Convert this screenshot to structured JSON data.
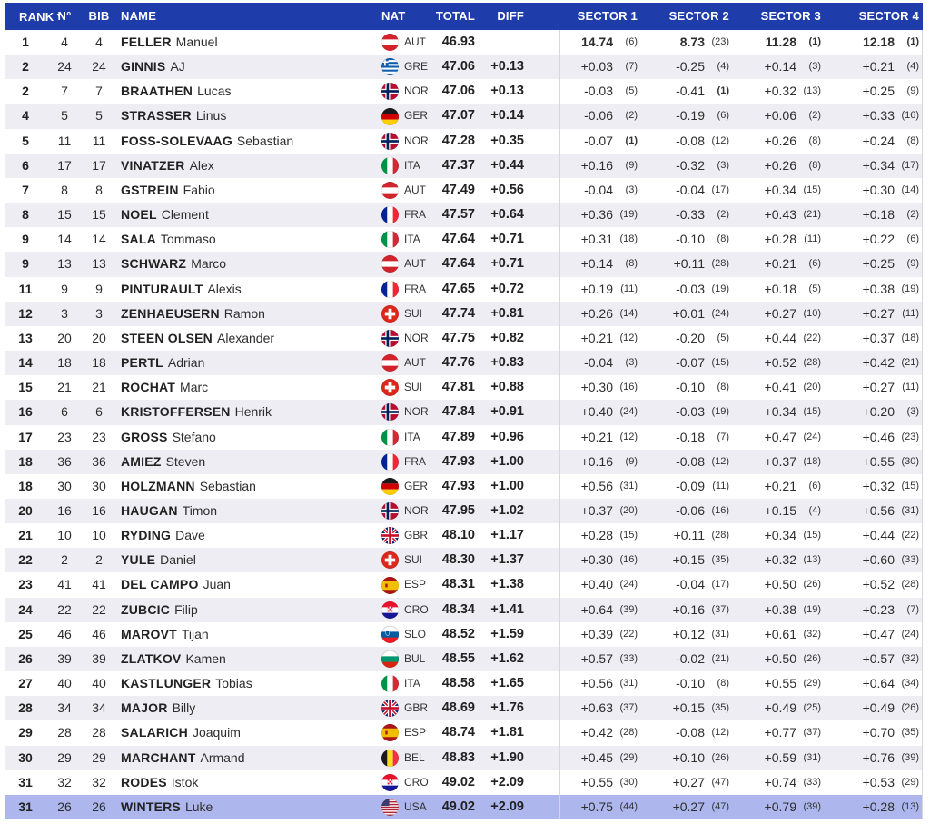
{
  "colors": {
    "header_bg": "#1e3dab",
    "header_text": "#ffffff",
    "row_alt": "#ededf3",
    "highlight_row": "#adb7ee",
    "separator": "#d6d7db"
  },
  "table": {
    "sort_indicator": "▼",
    "columns": [
      "RANK",
      "N°",
      "BIB",
      "NAME",
      "NAT",
      "TOTAL",
      "DIFF",
      "SECTOR 1",
      "SECTOR 2",
      "SECTOR 3",
      "SECTOR 4"
    ],
    "rows": [
      {
        "rank": "1",
        "n": "4",
        "bib": "4",
        "last": "FELLER",
        "first": "Manuel",
        "nat": "AUT",
        "total": "46.93",
        "diff": "",
        "sectors": [
          [
            "14.74",
            "(6)"
          ],
          [
            "8.73",
            "(23)"
          ],
          [
            "11.28",
            "(1)"
          ],
          [
            "12.18",
            "(1)"
          ]
        ]
      },
      {
        "rank": "2",
        "n": "24",
        "bib": "24",
        "last": "GINNIS",
        "first": "AJ",
        "nat": "GRE",
        "total": "47.06",
        "diff": "+0.13",
        "sectors": [
          [
            "+0.03",
            "(7)"
          ],
          [
            "-0.25",
            "(4)"
          ],
          [
            "+0.14",
            "(3)"
          ],
          [
            "+0.21",
            "(4)"
          ]
        ]
      },
      {
        "rank": "2",
        "n": "7",
        "bib": "7",
        "last": "BRAATHEN",
        "first": "Lucas",
        "nat": "NOR",
        "total": "47.06",
        "diff": "+0.13",
        "sectors": [
          [
            "-0.03",
            "(5)"
          ],
          [
            "-0.41",
            "(1)"
          ],
          [
            "+0.32",
            "(13)"
          ],
          [
            "+0.25",
            "(9)"
          ]
        ]
      },
      {
        "rank": "4",
        "n": "5",
        "bib": "5",
        "last": "STRASSER",
        "first": "Linus",
        "nat": "GER",
        "total": "47.07",
        "diff": "+0.14",
        "sectors": [
          [
            "-0.06",
            "(2)"
          ],
          [
            "-0.19",
            "(6)"
          ],
          [
            "+0.06",
            "(2)"
          ],
          [
            "+0.33",
            "(16)"
          ]
        ]
      },
      {
        "rank": "5",
        "n": "11",
        "bib": "11",
        "last": "FOSS-SOLEVAAG",
        "first": "Sebastian",
        "nat": "NOR",
        "total": "47.28",
        "diff": "+0.35",
        "sectors": [
          [
            "-0.07",
            "(1)"
          ],
          [
            "-0.08",
            "(12)"
          ],
          [
            "+0.26",
            "(8)"
          ],
          [
            "+0.24",
            "(8)"
          ]
        ]
      },
      {
        "rank": "6",
        "n": "17",
        "bib": "17",
        "last": "VINATZER",
        "first": "Alex",
        "nat": "ITA",
        "total": "47.37",
        "diff": "+0.44",
        "sectors": [
          [
            "+0.16",
            "(9)"
          ],
          [
            "-0.32",
            "(3)"
          ],
          [
            "+0.26",
            "(8)"
          ],
          [
            "+0.34",
            "(17)"
          ]
        ]
      },
      {
        "rank": "7",
        "n": "8",
        "bib": "8",
        "last": "GSTREIN",
        "first": "Fabio",
        "nat": "AUT",
        "total": "47.49",
        "diff": "+0.56",
        "sectors": [
          [
            "-0.04",
            "(3)"
          ],
          [
            "-0.04",
            "(17)"
          ],
          [
            "+0.34",
            "(15)"
          ],
          [
            "+0.30",
            "(14)"
          ]
        ]
      },
      {
        "rank": "8",
        "n": "15",
        "bib": "15",
        "last": "NOEL",
        "first": "Clement",
        "nat": "FRA",
        "total": "47.57",
        "diff": "+0.64",
        "sectors": [
          [
            "+0.36",
            "(19)"
          ],
          [
            "-0.33",
            "(2)"
          ],
          [
            "+0.43",
            "(21)"
          ],
          [
            "+0.18",
            "(2)"
          ]
        ]
      },
      {
        "rank": "9",
        "n": "14",
        "bib": "14",
        "last": "SALA",
        "first": "Tommaso",
        "nat": "ITA",
        "total": "47.64",
        "diff": "+0.71",
        "sectors": [
          [
            "+0.31",
            "(18)"
          ],
          [
            "-0.10",
            "(8)"
          ],
          [
            "+0.28",
            "(11)"
          ],
          [
            "+0.22",
            "(6)"
          ]
        ]
      },
      {
        "rank": "9",
        "n": "13",
        "bib": "13",
        "last": "SCHWARZ",
        "first": "Marco",
        "nat": "AUT",
        "total": "47.64",
        "diff": "+0.71",
        "sectors": [
          [
            "+0.14",
            "(8)"
          ],
          [
            "+0.11",
            "(28)"
          ],
          [
            "+0.21",
            "(6)"
          ],
          [
            "+0.25",
            "(9)"
          ]
        ]
      },
      {
        "rank": "11",
        "n": "9",
        "bib": "9",
        "last": "PINTURAULT",
        "first": "Alexis",
        "nat": "FRA",
        "total": "47.65",
        "diff": "+0.72",
        "sectors": [
          [
            "+0.19",
            "(11)"
          ],
          [
            "-0.03",
            "(19)"
          ],
          [
            "+0.18",
            "(5)"
          ],
          [
            "+0.38",
            "(19)"
          ]
        ]
      },
      {
        "rank": "12",
        "n": "3",
        "bib": "3",
        "last": "ZENHAEUSERN",
        "first": "Ramon",
        "nat": "SUI",
        "total": "47.74",
        "diff": "+0.81",
        "sectors": [
          [
            "+0.26",
            "(14)"
          ],
          [
            "+0.01",
            "(24)"
          ],
          [
            "+0.27",
            "(10)"
          ],
          [
            "+0.27",
            "(11)"
          ]
        ]
      },
      {
        "rank": "13",
        "n": "20",
        "bib": "20",
        "last": "STEEN OLSEN",
        "first": "Alexander",
        "nat": "NOR",
        "total": "47.75",
        "diff": "+0.82",
        "sectors": [
          [
            "+0.21",
            "(12)"
          ],
          [
            "-0.20",
            "(5)"
          ],
          [
            "+0.44",
            "(22)"
          ],
          [
            "+0.37",
            "(18)"
          ]
        ]
      },
      {
        "rank": "14",
        "n": "18",
        "bib": "18",
        "last": "PERTL",
        "first": "Adrian",
        "nat": "AUT",
        "total": "47.76",
        "diff": "+0.83",
        "sectors": [
          [
            "-0.04",
            "(3)"
          ],
          [
            "-0.07",
            "(15)"
          ],
          [
            "+0.52",
            "(28)"
          ],
          [
            "+0.42",
            "(21)"
          ]
        ]
      },
      {
        "rank": "15",
        "n": "21",
        "bib": "21",
        "last": "ROCHAT",
        "first": "Marc",
        "nat": "SUI",
        "total": "47.81",
        "diff": "+0.88",
        "sectors": [
          [
            "+0.30",
            "(16)"
          ],
          [
            "-0.10",
            "(8)"
          ],
          [
            "+0.41",
            "(20)"
          ],
          [
            "+0.27",
            "(11)"
          ]
        ]
      },
      {
        "rank": "16",
        "n": "6",
        "bib": "6",
        "last": "KRISTOFFERSEN",
        "first": "Henrik",
        "nat": "NOR",
        "total": "47.84",
        "diff": "+0.91",
        "sectors": [
          [
            "+0.40",
            "(24)"
          ],
          [
            "-0.03",
            "(19)"
          ],
          [
            "+0.34",
            "(15)"
          ],
          [
            "+0.20",
            "(3)"
          ]
        ]
      },
      {
        "rank": "17",
        "n": "23",
        "bib": "23",
        "last": "GROSS",
        "first": "Stefano",
        "nat": "ITA",
        "total": "47.89",
        "diff": "+0.96",
        "sectors": [
          [
            "+0.21",
            "(12)"
          ],
          [
            "-0.18",
            "(7)"
          ],
          [
            "+0.47",
            "(24)"
          ],
          [
            "+0.46",
            "(23)"
          ]
        ]
      },
      {
        "rank": "18",
        "n": "36",
        "bib": "36",
        "last": "AMIEZ",
        "first": "Steven",
        "nat": "FRA",
        "total": "47.93",
        "diff": "+1.00",
        "sectors": [
          [
            "+0.16",
            "(9)"
          ],
          [
            "-0.08",
            "(12)"
          ],
          [
            "+0.37",
            "(18)"
          ],
          [
            "+0.55",
            "(30)"
          ]
        ]
      },
      {
        "rank": "18",
        "n": "30",
        "bib": "30",
        "last": "HOLZMANN",
        "first": "Sebastian",
        "nat": "GER",
        "total": "47.93",
        "diff": "+1.00",
        "sectors": [
          [
            "+0.56",
            "(31)"
          ],
          [
            "-0.09",
            "(11)"
          ],
          [
            "+0.21",
            "(6)"
          ],
          [
            "+0.32",
            "(15)"
          ]
        ]
      },
      {
        "rank": "20",
        "n": "16",
        "bib": "16",
        "last": "HAUGAN",
        "first": "Timon",
        "nat": "NOR",
        "total": "47.95",
        "diff": "+1.02",
        "sectors": [
          [
            "+0.37",
            "(20)"
          ],
          [
            "-0.06",
            "(16)"
          ],
          [
            "+0.15",
            "(4)"
          ],
          [
            "+0.56",
            "(31)"
          ]
        ]
      },
      {
        "rank": "21",
        "n": "10",
        "bib": "10",
        "last": "RYDING",
        "first": "Dave",
        "nat": "GBR",
        "total": "48.10",
        "diff": "+1.17",
        "sectors": [
          [
            "+0.28",
            "(15)"
          ],
          [
            "+0.11",
            "(28)"
          ],
          [
            "+0.34",
            "(15)"
          ],
          [
            "+0.44",
            "(22)"
          ]
        ]
      },
      {
        "rank": "22",
        "n": "2",
        "bib": "2",
        "last": "YULE",
        "first": "Daniel",
        "nat": "SUI",
        "total": "48.30",
        "diff": "+1.37",
        "sectors": [
          [
            "+0.30",
            "(16)"
          ],
          [
            "+0.15",
            "(35)"
          ],
          [
            "+0.32",
            "(13)"
          ],
          [
            "+0.60",
            "(33)"
          ]
        ]
      },
      {
        "rank": "23",
        "n": "41",
        "bib": "41",
        "last": "DEL CAMPO",
        "first": "Juan",
        "nat": "ESP",
        "total": "48.31",
        "diff": "+1.38",
        "sectors": [
          [
            "+0.40",
            "(24)"
          ],
          [
            "-0.04",
            "(17)"
          ],
          [
            "+0.50",
            "(26)"
          ],
          [
            "+0.52",
            "(28)"
          ]
        ]
      },
      {
        "rank": "24",
        "n": "22",
        "bib": "22",
        "last": "ZUBCIC",
        "first": "Filip",
        "nat": "CRO",
        "total": "48.34",
        "diff": "+1.41",
        "sectors": [
          [
            "+0.64",
            "(39)"
          ],
          [
            "+0.16",
            "(37)"
          ],
          [
            "+0.38",
            "(19)"
          ],
          [
            "+0.23",
            "(7)"
          ]
        ]
      },
      {
        "rank": "25",
        "n": "46",
        "bib": "46",
        "last": "MAROVT",
        "first": "Tijan",
        "nat": "SLO",
        "total": "48.52",
        "diff": "+1.59",
        "sectors": [
          [
            "+0.39",
            "(22)"
          ],
          [
            "+0.12",
            "(31)"
          ],
          [
            "+0.61",
            "(32)"
          ],
          [
            "+0.47",
            "(24)"
          ]
        ]
      },
      {
        "rank": "26",
        "n": "39",
        "bib": "39",
        "last": "ZLATKOV",
        "first": "Kamen",
        "nat": "BUL",
        "total": "48.55",
        "diff": "+1.62",
        "sectors": [
          [
            "+0.57",
            "(33)"
          ],
          [
            "-0.02",
            "(21)"
          ],
          [
            "+0.50",
            "(26)"
          ],
          [
            "+0.57",
            "(32)"
          ]
        ]
      },
      {
        "rank": "27",
        "n": "40",
        "bib": "40",
        "last": "KASTLUNGER",
        "first": "Tobias",
        "nat": "ITA",
        "total": "48.58",
        "diff": "+1.65",
        "sectors": [
          [
            "+0.56",
            "(31)"
          ],
          [
            "-0.10",
            "(8)"
          ],
          [
            "+0.55",
            "(29)"
          ],
          [
            "+0.64",
            "(34)"
          ]
        ]
      },
      {
        "rank": "28",
        "n": "34",
        "bib": "34",
        "last": "MAJOR",
        "first": "Billy",
        "nat": "GBR",
        "total": "48.69",
        "diff": "+1.76",
        "sectors": [
          [
            "+0.63",
            "(37)"
          ],
          [
            "+0.15",
            "(35)"
          ],
          [
            "+0.49",
            "(25)"
          ],
          [
            "+0.49",
            "(26)"
          ]
        ]
      },
      {
        "rank": "29",
        "n": "28",
        "bib": "28",
        "last": "SALARICH",
        "first": "Joaquim",
        "nat": "ESP",
        "total": "48.74",
        "diff": "+1.81",
        "sectors": [
          [
            "+0.42",
            "(28)"
          ],
          [
            "-0.08",
            "(12)"
          ],
          [
            "+0.77",
            "(37)"
          ],
          [
            "+0.70",
            "(35)"
          ]
        ]
      },
      {
        "rank": "30",
        "n": "29",
        "bib": "29",
        "last": "MARCHANT",
        "first": "Armand",
        "nat": "BEL",
        "total": "48.83",
        "diff": "+1.90",
        "sectors": [
          [
            "+0.45",
            "(29)"
          ],
          [
            "+0.10",
            "(26)"
          ],
          [
            "+0.59",
            "(31)"
          ],
          [
            "+0.76",
            "(39)"
          ]
        ]
      },
      {
        "rank": "31",
        "n": "32",
        "bib": "32",
        "last": "RODES",
        "first": "Istok",
        "nat": "CRO",
        "total": "49.02",
        "diff": "+2.09",
        "sectors": [
          [
            "+0.55",
            "(30)"
          ],
          [
            "+0.27",
            "(47)"
          ],
          [
            "+0.74",
            "(33)"
          ],
          [
            "+0.53",
            "(29)"
          ]
        ]
      },
      {
        "rank": "31",
        "n": "26",
        "bib": "26",
        "last": "WINTERS",
        "first": "Luke",
        "nat": "USA",
        "total": "49.02",
        "diff": "+2.09",
        "highlight": true,
        "sectors": [
          [
            "+0.75",
            "(44)"
          ],
          [
            "+0.27",
            "(47)"
          ],
          [
            "+0.79",
            "(39)"
          ],
          [
            "+0.28",
            "(13)"
          ]
        ]
      }
    ]
  }
}
